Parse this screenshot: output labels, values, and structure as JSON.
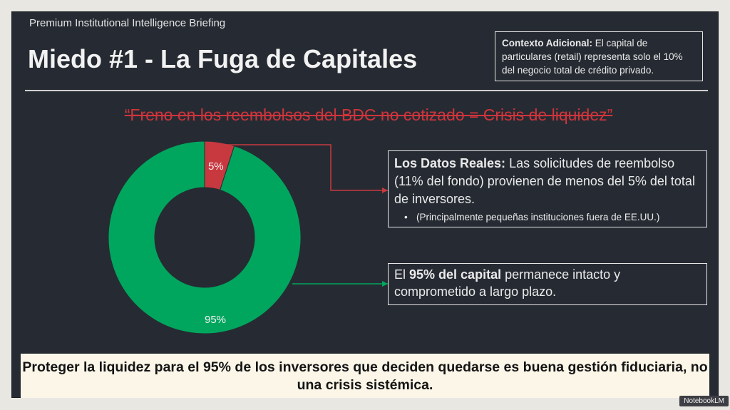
{
  "header": {
    "kicker": "Premium Institutional Intelligence Briefing",
    "title": "Miedo #1 - La Fuga de Capitales"
  },
  "context_box": {
    "label": "Contexto Adicional:",
    "text": " El capital de particulares (retail) representa solo el 10% del negocio total de crédito privado."
  },
  "quote": "“Freno en los reembolsos del BDC no cotizado = Crisis de liquidez”",
  "chart_data": {
    "type": "pie",
    "donut": true,
    "categories": [
      "5%",
      "95%"
    ],
    "values": [
      5,
      95
    ],
    "colors": [
      "#c7393f",
      "#00a65e"
    ],
    "data_labels": [
      "5%",
      "95%"
    ]
  },
  "callout_real": {
    "label": "Los Datos Reales:",
    "text": " Las solicitudes de reembolso (11% del fondo) provienen de menos del 5% del total de inversores.",
    "bullet_mark": "•",
    "bullet": "(Principalmente pequeñas instituciones fuera de EE.UU.)"
  },
  "callout_capital": {
    "prefix": "El ",
    "emphasis": "95% del capital",
    "suffix": " permanece intacto y comprometido a largo plazo."
  },
  "banner": "Proteger la liquidez para el 95% de los inversores que deciden quedarse es buena gestión fiduciaria, no una crisis sistémica.",
  "badge": "NotebookLM",
  "colors": {
    "background": "#262b33",
    "red": "#c7393f",
    "green": "#00a65e",
    "banner_bg": "#fbf6e8"
  }
}
